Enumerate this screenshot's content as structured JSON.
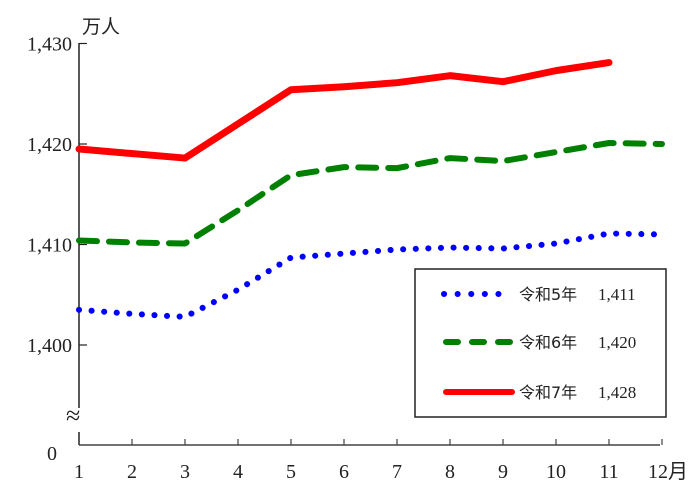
{
  "chart_data": {
    "type": "line",
    "title": "",
    "ylabel": "万人",
    "xlabel": "月",
    "x": [
      1,
      2,
      3,
      4,
      5,
      6,
      7,
      8,
      9,
      10,
      11,
      12
    ],
    "x_tick_labels": [
      "1",
      "2",
      "3",
      "4",
      "5",
      "6",
      "7",
      "8",
      "9",
      "10",
      "11",
      "12月"
    ],
    "y_tick_labels": [
      "1,430",
      "1,420",
      "1,410",
      "1,400",
      "0"
    ],
    "y_ticks": [
      1430,
      1420,
      1410,
      1400
    ],
    "ylim": [
      1390,
      1430
    ],
    "axis_break": true,
    "grid": false,
    "legend_position": "lower right (inside plot)",
    "series": [
      {
        "name": "令和5年",
        "legend_value": "1,411",
        "color": "#0000ff",
        "style": "dotted",
        "values": [
          1403.5,
          1403.1,
          1402.8,
          1405.5,
          1408.7,
          1409.1,
          1409.5,
          1409.7,
          1409.6,
          1410.1,
          1411.1,
          1411.0
        ]
      },
      {
        "name": "令和6年",
        "legend_value": "1,420",
        "color": "#008000",
        "style": "dashed",
        "values": [
          1410.4,
          1410.2,
          1410.1,
          1413.4,
          1416.9,
          1417.7,
          1417.6,
          1418.6,
          1418.3,
          1419.2,
          1420.1,
          1420.0
        ]
      },
      {
        "name": "令和7年",
        "legend_value": "1,428",
        "color": "#ff0000",
        "style": "solid",
        "values": [
          1419.5,
          null,
          1418.6,
          null,
          1425.4,
          1425.7,
          1426.1,
          1426.8,
          1426.2,
          1427.3,
          1428.1,
          null
        ]
      }
    ]
  },
  "axis": {
    "unit": "万人",
    "zero_label": "0",
    "break_symbol": "≈"
  },
  "legend": {
    "items": [
      {
        "label": "令和5年",
        "value": "1,411"
      },
      {
        "label": "令和6年",
        "value": "1,420"
      },
      {
        "label": "令和7年",
        "value": "1,428"
      }
    ]
  }
}
